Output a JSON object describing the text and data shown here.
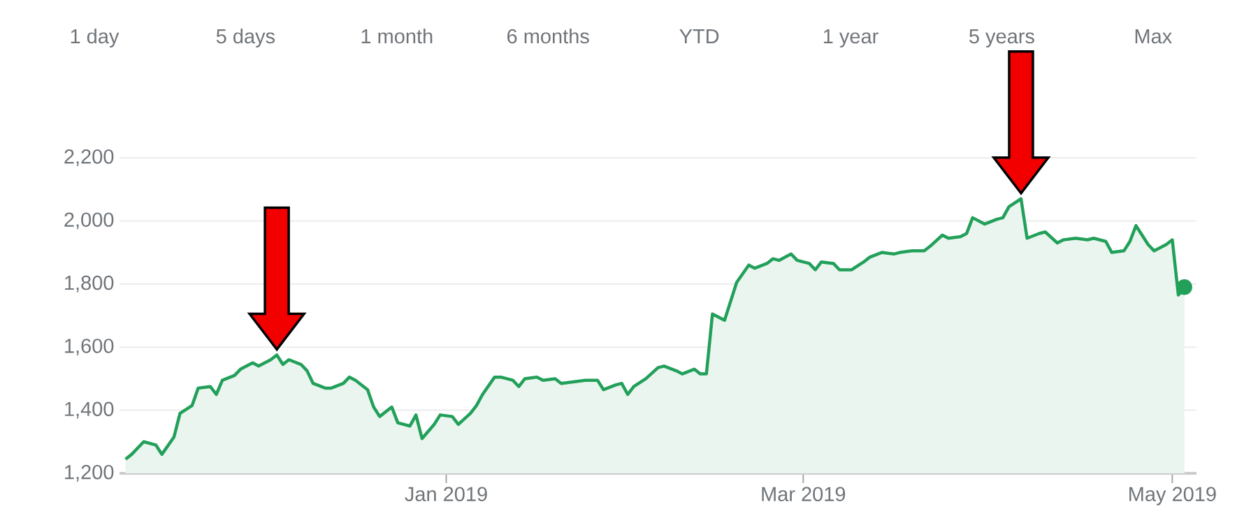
{
  "chart_data": {
    "type": "area",
    "color": "#22a05a",
    "annotations": [
      "1 day",
      "5 days",
      "1 month",
      "6 months",
      "YTD",
      "1 year",
      "5 years",
      "Max"
    ],
    "x": [
      "2018-11-09",
      "2018-11-10",
      "2018-11-12",
      "2018-11-14",
      "2018-11-15",
      "2018-11-17",
      "2018-11-18",
      "2018-11-20",
      "2018-11-21",
      "2018-11-23",
      "2018-11-24",
      "2018-11-25",
      "2018-11-27",
      "2018-11-28",
      "2018-11-30",
      "2018-12-01",
      "2018-12-03",
      "2018-12-04",
      "2018-12-05",
      "2018-12-06",
      "2018-12-08",
      "2018-12-09",
      "2018-12-10",
      "2018-12-12",
      "2018-12-13",
      "2018-12-15",
      "2018-12-16",
      "2018-12-17",
      "2018-12-19",
      "2018-12-20",
      "2018-12-21",
      "2018-12-23",
      "2018-12-24",
      "2018-12-26",
      "2018-12-27",
      "2018-12-28",
      "2018-12-30",
      "2018-12-31",
      "2019-01-02",
      "2019-01-03",
      "2019-01-05",
      "2019-01-06",
      "2019-01-07",
      "2019-01-09",
      "2019-01-10",
      "2019-01-12",
      "2019-01-13",
      "2019-01-14",
      "2019-01-16",
      "2019-01-17",
      "2019-01-19",
      "2019-01-20",
      "2019-01-22",
      "2019-01-24",
      "2019-01-26",
      "2019-01-27",
      "2019-01-29",
      "2019-01-30",
      "2019-01-31",
      "2019-02-01",
      "2019-02-03",
      "2019-02-05",
      "2019-02-06",
      "2019-02-08",
      "2019-02-09",
      "2019-02-11",
      "2019-02-12",
      "2019-02-13",
      "2019-02-14",
      "2019-02-16",
      "2019-02-17",
      "2019-02-18",
      "2019-02-20",
      "2019-02-21",
      "2019-02-23",
      "2019-02-24",
      "2019-02-25",
      "2019-02-27",
      "2019-02-28",
      "2019-03-02",
      "2019-03-03",
      "2019-03-04",
      "2019-03-06",
      "2019-03-07",
      "2019-03-09",
      "2019-03-11",
      "2019-03-12",
      "2019-03-14",
      "2019-03-16",
      "2019-03-17",
      "2019-03-19",
      "2019-03-21",
      "2019-03-22",
      "2019-03-24",
      "2019-03-25",
      "2019-03-27",
      "2019-03-28",
      "2019-03-29",
      "2019-03-31",
      "2019-04-02",
      "2019-04-03",
      "2019-04-04",
      "2019-04-06",
      "2019-04-07",
      "2019-04-09",
      "2019-04-10",
      "2019-04-12",
      "2019-04-13",
      "2019-04-15",
      "2019-04-17",
      "2019-04-18",
      "2019-04-20",
      "2019-04-21",
      "2019-04-23",
      "2019-04-24",
      "2019-04-25",
      "2019-04-27",
      "2019-04-28",
      "2019-04-30",
      "2019-05-01",
      "2019-05-02",
      "2019-05-03"
    ],
    "values": [
      1245,
      1260,
      1300,
      1290,
      1260,
      1315,
      1390,
      1415,
      1470,
      1475,
      1450,
      1495,
      1510,
      1530,
      1550,
      1540,
      1560,
      1575,
      1545,
      1560,
      1545,
      1525,
      1485,
      1470,
      1470,
      1485,
      1505,
      1495,
      1465,
      1410,
      1380,
      1410,
      1360,
      1350,
      1385,
      1310,
      1355,
      1385,
      1380,
      1355,
      1390,
      1415,
      1450,
      1505,
      1505,
      1495,
      1475,
      1500,
      1505,
      1495,
      1500,
      1485,
      1490,
      1495,
      1495,
      1465,
      1480,
      1485,
      1450,
      1475,
      1500,
      1535,
      1540,
      1525,
      1515,
      1530,
      1515,
      1515,
      1705,
      1685,
      1745,
      1805,
      1860,
      1850,
      1865,
      1880,
      1875,
      1895,
      1875,
      1865,
      1845,
      1870,
      1865,
      1845,
      1845,
      1870,
      1885,
      1900,
      1895,
      1900,
      1905,
      1905,
      1920,
      1955,
      1945,
      1950,
      1960,
      2010,
      1990,
      2005,
      2010,
      2045,
      2070,
      1945,
      1960,
      1965,
      1930,
      1940,
      1945,
      1940,
      1945,
      1935,
      1900,
      1905,
      1935,
      1985,
      1925,
      1905,
      1925,
      1940,
      1765,
      1790
    ],
    "xlim": [
      "2018-11-08",
      "2019-05-05"
    ],
    "xticks": [
      {
        "value": "2019-01-01",
        "label": "Jan 2019"
      },
      {
        "value": "2019-03-01",
        "label": "Mar 2019"
      },
      {
        "value": "2019-05-01",
        "label": "May 2019"
      }
    ],
    "ylim": [
      1200,
      2200
    ],
    "yticks": [
      {
        "value": 1200,
        "label": "1,200"
      },
      {
        "value": 1400,
        "label": "1,400"
      },
      {
        "value": 1600,
        "label": "1,600"
      },
      {
        "value": 1800,
        "label": "1,800"
      },
      {
        "value": 2000,
        "label": "2,000"
      },
      {
        "value": 2200,
        "label": "2,200"
      }
    ],
    "grid": "y"
  }
}
